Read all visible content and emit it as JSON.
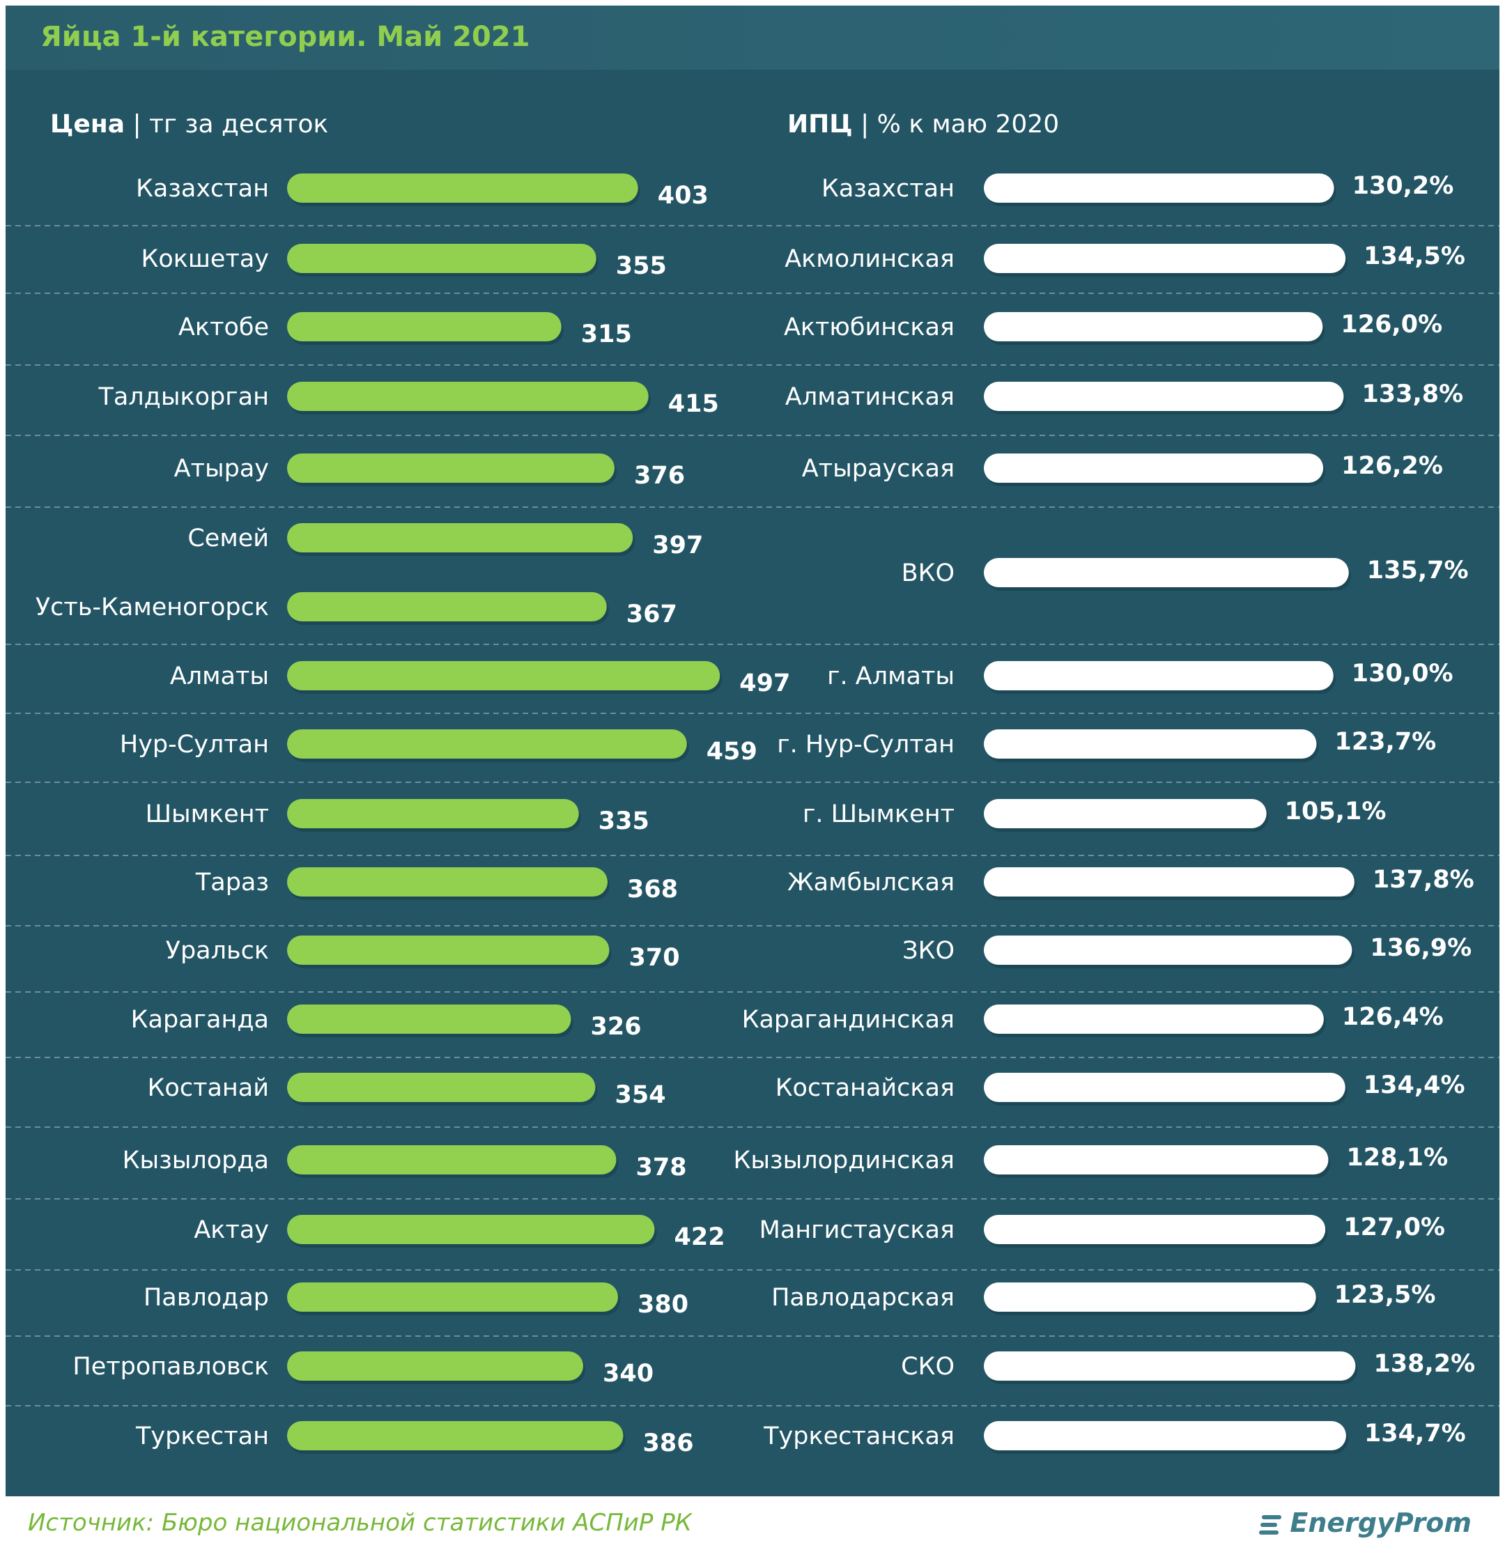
{
  "title": "Яйца 1-й категории. Май 2021",
  "headers": {
    "left_bold": "Цена",
    "left_rest": "| тг за десяток",
    "right_bold": "ИПЦ",
    "right_rest": "| % к маю 2020"
  },
  "source": "Источник: Бюро национальной  статистики АСПиР РК",
  "logo": "EnergyProm",
  "colors": {
    "background": "#235565",
    "price_bar": "#92d050",
    "cpi_bar": "#ffffff",
    "title": "#8fce4f",
    "divider": "#6d8f9a"
  },
  "chart_data": [
    {
      "type": "bar",
      "orientation": "horizontal",
      "title": "Цена",
      "unit": "тг за десяток",
      "categories": [
        "Казахстан",
        "Кокшетау",
        "Актобе",
        "Талдыкорган",
        "Атырау",
        "Семей",
        "Усть-Каменогорск",
        "Алматы",
        "Нур-Султан",
        "Шымкент",
        "Тараз",
        "Уральск",
        "Караганда",
        "Костанай",
        "Кызылорда",
        "Актау",
        "Павлодар",
        "Петропавловск",
        "Туркестан"
      ],
      "values": [
        403,
        355,
        315,
        415,
        376,
        397,
        367,
        497,
        459,
        335,
        368,
        370,
        326,
        354,
        378,
        422,
        380,
        340,
        386
      ],
      "value_labels": [
        "403",
        "355",
        "315",
        "415",
        "376",
        "397",
        "367",
        "497",
        "459",
        "335",
        "368",
        "370",
        "326",
        "354",
        "378",
        "422",
        "380",
        "340",
        "386"
      ]
    },
    {
      "type": "bar",
      "orientation": "horizontal",
      "title": "ИПЦ",
      "unit": "% к маю 2020",
      "categories": [
        "Казахстан",
        "Акмолинская",
        "Актюбинская",
        "Алматинская",
        "Атырауская",
        "ВКО",
        "г. Алматы",
        "г. Нур-Султан",
        "г. Шымкент",
        "Жамбылская",
        "ЗКО",
        "Карагандинская",
        "Костанайская",
        "Кызылординская",
        "Мангистауская",
        "Павлодарская",
        "СКО",
        "Туркестанская"
      ],
      "values": [
        130.2,
        134.5,
        126.0,
        133.8,
        126.2,
        135.7,
        130.0,
        123.7,
        105.1,
        137.8,
        136.9,
        126.4,
        134.4,
        128.1,
        127.0,
        123.5,
        138.2,
        134.7
      ],
      "value_labels": [
        "130,2%",
        "134,5%",
        "126,0%",
        "133,8%",
        "126,2%",
        "135,7%",
        "130,0%",
        "123,7%",
        "105,1%",
        "137,8%",
        "136,9%",
        "126,4%",
        "134,4%",
        "128,1%",
        "127,0%",
        "123,5%",
        "138,2%",
        "134,7%"
      ]
    }
  ]
}
